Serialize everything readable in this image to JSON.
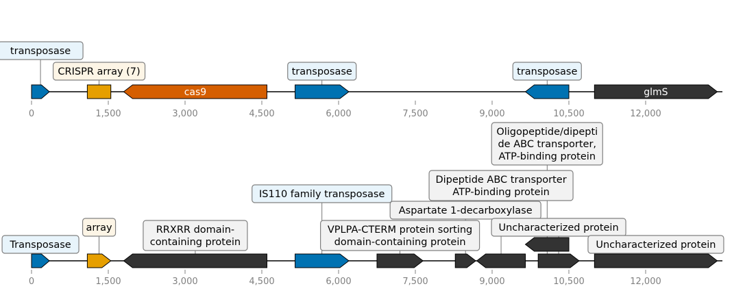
{
  "tracks": [
    {
      "axis": {
        "min": 0,
        "max": 13500,
        "ticks": [
          0,
          1500,
          3000,
          4500,
          6000,
          7500,
          9000,
          10500,
          12000
        ],
        "tick_labels": [
          "0",
          "1,500",
          "3,000",
          "4,500",
          "6,000",
          "7,500",
          "9,000",
          "10,500",
          "12,000"
        ]
      },
      "features": [
        {
          "start": 0,
          "end": 350,
          "strand": 1,
          "color": "#0072b2",
          "text": ""
        },
        {
          "start": 1090,
          "end": 1550,
          "strand": 0,
          "color": "#e69f00",
          "text": ""
        },
        {
          "start": 1800,
          "end": 4600,
          "strand": -1,
          "color": "#d55e00",
          "text": "cas9"
        },
        {
          "start": 5150,
          "end": 6200,
          "strand": 1,
          "color": "#0072b2",
          "text": ""
        },
        {
          "start": 9650,
          "end": 10500,
          "strand": -1,
          "color": "#0072b2",
          "text": ""
        },
        {
          "start": 11000,
          "end": 13400,
          "strand": 1,
          "color": "#333333",
          "text": "glmS"
        }
      ],
      "labels": [
        {
          "text": [
            "transposase"
          ],
          "pos": 175,
          "fill": "#e8f4fb"
        },
        {
          "text": [
            "CRISPR array (7)"
          ],
          "pos": 1320,
          "fill": "#fdf5e6"
        },
        {
          "text": [
            "transposase"
          ],
          "pos": 5675,
          "fill": "#e8f4fb"
        },
        {
          "text": [
            "transposase"
          ],
          "pos": 10075,
          "fill": "#e8f4fb"
        }
      ]
    },
    {
      "axis": {
        "min": 0,
        "max": 13500,
        "ticks": [
          0,
          1500,
          3000,
          4500,
          6000,
          7500,
          9000,
          10500,
          12000
        ],
        "tick_labels": [
          "0",
          "1,500",
          "3,000",
          "4,500",
          "6,000",
          "7,500",
          "9,000",
          "10,500",
          "12,000"
        ]
      },
      "features": [
        {
          "start": 0,
          "end": 350,
          "strand": 1,
          "color": "#0072b2",
          "text": ""
        },
        {
          "start": 1090,
          "end": 1550,
          "strand": 1,
          "color": "#e69f00",
          "text": ""
        },
        {
          "start": 1800,
          "end": 4600,
          "strand": -1,
          "color": "#333333",
          "text": ""
        },
        {
          "start": 5150,
          "end": 6200,
          "strand": 1,
          "color": "#0072b2",
          "text": ""
        },
        {
          "start": 6750,
          "end": 7650,
          "strand": 1,
          "color": "#333333",
          "text": ""
        },
        {
          "start": 8280,
          "end": 8680,
          "strand": 1,
          "color": "#333333",
          "text": ""
        },
        {
          "start": 8700,
          "end": 9650,
          "strand": -1,
          "color": "#333333",
          "text": ""
        },
        {
          "start": 9650,
          "end": 10500,
          "strand": -1,
          "color": "#333333",
          "text": "",
          "lifted": true
        },
        {
          "start": 9900,
          "end": 10700,
          "strand": 1,
          "color": "#333333",
          "text": ""
        },
        {
          "start": 11000,
          "end": 13400,
          "strand": 1,
          "color": "#333333",
          "text": ""
        }
      ],
      "labels": [
        {
          "text": [
            "Transposase"
          ],
          "pos": 175,
          "fill": "#e8f4fb"
        },
        {
          "text": [
            "array"
          ],
          "pos": 1320,
          "fill": "#fdf5e6"
        },
        {
          "text": [
            "RRXRR domain-",
            "containing protein"
          ],
          "pos": 3200,
          "fill": "#f2f2f2"
        },
        {
          "text": [
            "IS110 family transposase"
          ],
          "pos": 5675,
          "fill": "#e8f4fb"
        },
        {
          "text": [
            "VPLPA-CTERM protein sorting",
            "domain-containing protein"
          ],
          "pos": 7200,
          "fill": "#f2f2f2"
        },
        {
          "text": [
            "Aspartate 1-decarboxylase"
          ],
          "pos": 8480,
          "fill": "#f2f2f2"
        },
        {
          "text": [
            "Dipeptide ABC transporter",
            "ATP-binding protein"
          ],
          "pos": 9175,
          "fill": "#f2f2f2"
        },
        {
          "text": [
            "Oligopeptide/dipepti",
            "de ABC transporter,",
            "ATP-binding protein"
          ],
          "pos": 10075,
          "fill": "#f2f2f2"
        },
        {
          "text": [
            "Uncharacterized protein"
          ],
          "pos": 10300,
          "fill": "#f2f2f2"
        },
        {
          "text": [
            "Uncharacterized protein"
          ],
          "pos": 12200,
          "fill": "#f2f2f2"
        }
      ]
    }
  ]
}
